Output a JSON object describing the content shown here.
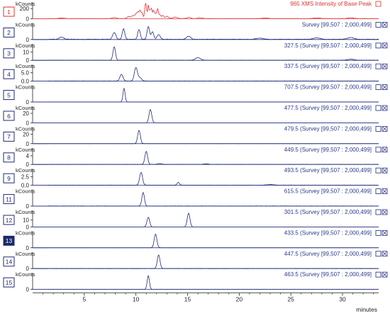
{
  "colors": {
    "tic": "#e03030",
    "trace": "#1f2a7a",
    "axis": "#222222",
    "label_text": "#2b3a8c",
    "badge_selected_bg": "#1b2a6b",
    "badge_tic_border": "#e03030"
  },
  "chart_data": {
    "type": "line",
    "x_axis": {
      "label": "minutes",
      "range": [
        0,
        33.5
      ],
      "ticks": [
        5,
        10,
        15,
        20,
        25,
        30
      ]
    },
    "unit_label": "kCounts",
    "panels": [
      {
        "index": "1",
        "label": "965 XMS Intensity of Base Peak",
        "badge_style": "tic",
        "color_key": "tic",
        "y_ticks": [
          {
            "v": 0,
            "t": "0"
          },
          {
            "v": 200,
            "t": "200"
          }
        ],
        "ymax": 300,
        "peaks": [
          [
            2.8,
            12,
            0.25
          ],
          [
            7.9,
            20,
            0.2
          ],
          [
            9.3,
            40,
            0.15
          ],
          [
            9.7,
            60,
            0.12
          ],
          [
            10.0,
            95,
            0.1
          ],
          [
            10.2,
            120,
            0.08
          ],
          [
            10.4,
            160,
            0.08
          ],
          [
            10.6,
            110,
            0.08
          ],
          [
            10.9,
            210,
            0.07
          ],
          [
            11.0,
            180,
            0.07
          ],
          [
            11.2,
            260,
            0.06
          ],
          [
            11.35,
            140,
            0.06
          ],
          [
            11.5,
            200,
            0.07
          ],
          [
            11.7,
            150,
            0.07
          ],
          [
            11.9,
            100,
            0.1
          ],
          [
            12.1,
            170,
            0.07
          ],
          [
            12.3,
            80,
            0.1
          ],
          [
            12.6,
            60,
            0.1
          ],
          [
            13.0,
            45,
            0.15
          ],
          [
            13.8,
            30,
            0.2
          ],
          [
            15.1,
            25,
            0.2
          ],
          [
            16.2,
            18,
            0.2
          ],
          [
            22.5,
            10,
            0.3
          ],
          [
            27.5,
            14,
            0.3
          ],
          [
            30.8,
            16,
            0.3
          ]
        ],
        "noise": 5
      },
      {
        "index": "2",
        "label": "Survey [99,507 : 2,000,499]",
        "badge_style": "normal",
        "color_key": "trace",
        "y_ticks": [
          {
            "v": 0,
            "t": "0"
          }
        ],
        "ymax": 100,
        "peaks": [
          [
            2.8,
            15,
            0.2
          ],
          [
            7.9,
            45,
            0.15
          ],
          [
            8.8,
            70,
            0.12
          ],
          [
            10.3,
            65,
            0.12
          ],
          [
            11.2,
            85,
            0.12
          ],
          [
            11.6,
            50,
            0.12
          ],
          [
            12.2,
            30,
            0.15
          ],
          [
            15.1,
            20,
            0.2
          ],
          [
            22.0,
            8,
            0.3
          ],
          [
            27.5,
            10,
            0.3
          ],
          [
            30.8,
            12,
            0.3
          ]
        ],
        "noise": 3
      },
      {
        "index": "3",
        "label": "327.5 (Survey [99,507 : 2,000,499]",
        "badge_style": "normal",
        "color_key": "trace",
        "y_ticks": [
          {
            "v": 0,
            "t": "0"
          },
          {
            "v": 10,
            "t": "10"
          }
        ],
        "ymax": 18,
        "peaks": [
          [
            7.9,
            16,
            0.12
          ],
          [
            16.0,
            3,
            0.25
          ],
          [
            30.8,
            1.2,
            0.3
          ]
        ],
        "noise": 0.3
      },
      {
        "index": "4",
        "label": "337.5 (Survey [99,507 : 2,000,499]",
        "badge_style": "normal",
        "color_key": "trace",
        "y_ticks": [
          {
            "v": 0,
            "t": "0.0"
          },
          {
            "v": 5,
            "t": "5.0"
          }
        ],
        "ymax": 9,
        "peaks": [
          [
            8.6,
            4,
            0.15
          ],
          [
            10.0,
            8,
            0.15
          ],
          [
            10.4,
            2,
            0.15
          ]
        ],
        "noise": 0.15
      },
      {
        "index": "5",
        "label": "707.5 (Survey [99,507 : 2,000,499]",
        "badge_style": "normal",
        "color_key": "trace",
        "y_ticks": [
          {
            "v": 0,
            "t": "0"
          }
        ],
        "ymax": 10,
        "peaks": [
          [
            8.85,
            9,
            0.1
          ]
        ],
        "noise": 0.05
      },
      {
        "index": "6",
        "label": "477.5 (Survey [99,507 : 2,000,499]",
        "badge_style": "normal",
        "color_key": "trace",
        "y_ticks": [
          {
            "v": 0,
            "t": "0"
          },
          {
            "v": 20,
            "t": "20"
          }
        ],
        "ymax": 32,
        "peaks": [
          [
            11.4,
            28,
            0.13
          ]
        ],
        "noise": 0.1
      },
      {
        "index": "7",
        "label": "479.5 (Survey [99,507 : 2,000,499]",
        "badge_style": "normal",
        "color_key": "trace",
        "y_ticks": [
          {
            "v": 0,
            "t": "0"
          },
          {
            "v": 20,
            "t": "20"
          }
        ],
        "ymax": 32,
        "peaks": [
          [
            10.3,
            28,
            0.13
          ]
        ],
        "noise": 0.1
      },
      {
        "index": "8",
        "label": "449.5 (Survey [99,507 : 2,000,499]",
        "badge_style": "normal",
        "color_key": "trace",
        "y_ticks": [
          {
            "v": 0,
            "t": "0"
          },
          {
            "v": 4,
            "t": "4"
          }
        ],
        "ymax": 7,
        "peaks": [
          [
            11.0,
            6,
            0.13
          ],
          [
            12.3,
            0.4,
            0.2
          ],
          [
            16.8,
            0.3,
            0.2
          ]
        ],
        "noise": 0.08
      },
      {
        "index": "9",
        "label": "493.5 (Survey [99,507 : 2,000,499]",
        "badge_style": "normal",
        "color_key": "trace",
        "y_ticks": [
          {
            "v": 0,
            "t": "0.0"
          },
          {
            "v": 2.5,
            "t": "2.5"
          }
        ],
        "ymax": 4.5,
        "peaks": [
          [
            10.5,
            3.8,
            0.14
          ],
          [
            14.1,
            0.8,
            0.12
          ],
          [
            23.0,
            0.2,
            0.3
          ]
        ],
        "noise": 0.06
      },
      {
        "index": "11",
        "label": "615.5 (Survey [99,507 : 2,000,499]",
        "badge_style": "normal",
        "color_key": "trace",
        "y_ticks": [
          {
            "v": 0,
            "t": "0"
          }
        ],
        "ymax": 10,
        "peaks": [
          [
            10.7,
            9,
            0.12
          ]
        ],
        "noise": 0.15
      },
      {
        "index": "12",
        "label": "301.5 (Survey [99,507 : 2,000,499]",
        "badge_style": "normal",
        "color_key": "trace",
        "y_ticks": [
          {
            "v": 0,
            "t": "0"
          },
          {
            "v": 10,
            "t": "10"
          }
        ],
        "ymax": 22,
        "peaks": [
          [
            11.2,
            14,
            0.13
          ],
          [
            15.1,
            20,
            0.13
          ]
        ],
        "noise": 0.05
      },
      {
        "index": "13",
        "label": "433.5 (Survey [99,507 : 2,000,499]",
        "badge_style": "selected",
        "color_key": "trace",
        "y_ticks": [
          {
            "v": 0,
            "t": "0"
          }
        ],
        "ymax": 10,
        "peaks": [
          [
            11.9,
            9,
            0.13
          ]
        ],
        "noise": 0.04
      },
      {
        "index": "14",
        "label": "447.5 (Survey [99,507 : 2,000,499]",
        "badge_style": "normal",
        "color_key": "trace",
        "y_ticks": [
          {
            "v": 0,
            "t": "0"
          }
        ],
        "ymax": 10,
        "peaks": [
          [
            12.2,
            9,
            0.13
          ]
        ],
        "noise": 0.04
      },
      {
        "index": "15",
        "label": "463.5 (Survey [99,507 : 2,000,499]",
        "badge_style": "normal",
        "color_key": "trace",
        "y_ticks": [
          {
            "v": 0,
            "t": "0"
          }
        ],
        "ymax": 10,
        "peaks": [
          [
            11.2,
            9,
            0.11
          ]
        ],
        "noise": 0.04
      }
    ]
  }
}
